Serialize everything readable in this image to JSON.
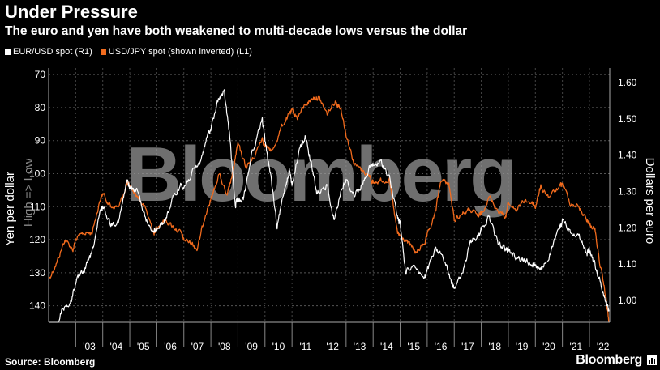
{
  "header": {
    "title": "Under Pressure",
    "subtitle": "The euro and yen have both weakened to multi-decade lows versus the dollar"
  },
  "footer": {
    "source": "Source: Bloomberg",
    "brand": "Bloomberg"
  },
  "watermark": "Bloomberg",
  "chart_data": {
    "type": "line",
    "title": "Under Pressure",
    "subtitle": "The euro and yen have both weakened to multi-decade lows versus the dollar",
    "legend_position": "top-left",
    "grid": true,
    "left_axis": {
      "label": "Yen per dollar",
      "annotation": "High => Low",
      "range": [
        145,
        68
      ],
      "inverted": true,
      "ticks": [
        70,
        80,
        90,
        100,
        110,
        120,
        130,
        140
      ]
    },
    "right_axis": {
      "label": "Dollars per euro",
      "range": [
        0.94,
        1.64
      ],
      "ticks": [
        "1.00",
        "1.10",
        "1.20",
        "1.30",
        "1.40",
        "1.50",
        "1.60"
      ]
    },
    "x_axis": {
      "range": [
        2002.0,
        2022.75
      ],
      "tick_labels": [
        "'03",
        "'04",
        "'05",
        "'06",
        "'07",
        "'08",
        "'09",
        "'10",
        "'11",
        "'12",
        "'13",
        "'14",
        "'15",
        "'16",
        "'17",
        "'18",
        "'19",
        "'20",
        "'21",
        "'22"
      ]
    },
    "series": [
      {
        "name": "EUR/USD spot (R1)",
        "axis": "right",
        "color": "#ffffff",
        "x": [
          2002.0,
          2002.2,
          2002.5,
          2002.8,
          2003.0,
          2003.3,
          2003.6,
          2003.9,
          2004.0,
          2004.3,
          2004.6,
          2004.9,
          2005.0,
          2005.3,
          2005.6,
          2005.9,
          2006.0,
          2006.3,
          2006.6,
          2006.9,
          2007.0,
          2007.3,
          2007.6,
          2007.9,
          2008.0,
          2008.3,
          2008.5,
          2008.7,
          2008.9,
          2009.0,
          2009.2,
          2009.5,
          2009.9,
          2010.0,
          2010.2,
          2010.45,
          2010.7,
          2010.9,
          2011.0,
          2011.3,
          2011.5,
          2011.7,
          2011.9,
          2012.0,
          2012.3,
          2012.55,
          2012.8,
          2013.0,
          2013.3,
          2013.6,
          2013.9,
          2014.0,
          2014.3,
          2014.6,
          2014.9,
          2015.0,
          2015.2,
          2015.5,
          2015.9,
          2016.0,
          2016.3,
          2016.6,
          2016.9,
          2017.0,
          2017.3,
          2017.6,
          2017.9,
          2018.0,
          2018.3,
          2018.6,
          2018.9,
          2019.0,
          2019.3,
          2019.6,
          2019.9,
          2020.0,
          2020.2,
          2020.5,
          2020.9,
          2021.0,
          2021.3,
          2021.6,
          2021.9,
          2022.0,
          2022.2,
          2022.4,
          2022.6,
          2022.72
        ],
        "values": [
          0.9,
          0.88,
          0.98,
          0.99,
          1.05,
          1.08,
          1.13,
          1.24,
          1.26,
          1.21,
          1.22,
          1.33,
          1.31,
          1.3,
          1.22,
          1.19,
          1.2,
          1.22,
          1.28,
          1.32,
          1.31,
          1.35,
          1.38,
          1.46,
          1.47,
          1.56,
          1.57,
          1.45,
          1.26,
          1.28,
          1.28,
          1.4,
          1.5,
          1.44,
          1.35,
          1.2,
          1.3,
          1.36,
          1.32,
          1.42,
          1.45,
          1.38,
          1.3,
          1.29,
          1.32,
          1.22,
          1.3,
          1.33,
          1.29,
          1.32,
          1.37,
          1.37,
          1.38,
          1.34,
          1.23,
          1.21,
          1.08,
          1.1,
          1.06,
          1.08,
          1.14,
          1.12,
          1.05,
          1.04,
          1.07,
          1.16,
          1.18,
          1.2,
          1.23,
          1.16,
          1.14,
          1.14,
          1.12,
          1.11,
          1.1,
          1.1,
          1.08,
          1.12,
          1.2,
          1.22,
          1.19,
          1.18,
          1.13,
          1.14,
          1.1,
          1.05,
          1.0,
          0.97
        ]
      },
      {
        "name": "USD/JPY spot (shown inverted) (L1)",
        "axis": "left",
        "color": "#f26b1d",
        "x": [
          2002.0,
          2002.3,
          2002.6,
          2002.9,
          2003.0,
          2003.3,
          2003.6,
          2003.9,
          2004.0,
          2004.3,
          2004.6,
          2004.9,
          2005.0,
          2005.3,
          2005.6,
          2005.9,
          2006.0,
          2006.3,
          2006.6,
          2006.9,
          2007.0,
          2007.3,
          2007.5,
          2007.8,
          2008.0,
          2008.3,
          2008.6,
          2008.8,
          2009.0,
          2009.3,
          2009.6,
          2009.9,
          2010.0,
          2010.3,
          2010.6,
          2010.9,
          2011.0,
          2011.2,
          2011.5,
          2011.8,
          2012.0,
          2012.3,
          2012.6,
          2012.8,
          2013.0,
          2013.3,
          2013.6,
          2013.9,
          2014.0,
          2014.3,
          2014.6,
          2014.9,
          2015.0,
          2015.3,
          2015.6,
          2015.9,
          2016.0,
          2016.3,
          2016.5,
          2016.8,
          2017.0,
          2017.3,
          2017.6,
          2017.9,
          2018.0,
          2018.3,
          2018.6,
          2018.9,
          2019.0,
          2019.3,
          2019.6,
          2019.9,
          2020.0,
          2020.2,
          2020.5,
          2020.9,
          2021.0,
          2021.3,
          2021.6,
          2021.9,
          2022.0,
          2022.2,
          2022.4,
          2022.6,
          2022.72
        ],
        "values": [
          132,
          127,
          120,
          123,
          120,
          118,
          118,
          108,
          106,
          110,
          110,
          103,
          104,
          107,
          111,
          118,
          116,
          114,
          116,
          118,
          120,
          121,
          123,
          112,
          108,
          100,
          107,
          100,
          91,
          98,
          95,
          89,
          92,
          93,
          86,
          82,
          81,
          83,
          79,
          77,
          77,
          82,
          78,
          80,
          88,
          97,
          99,
          101,
          103,
          102,
          102,
          118,
          119,
          121,
          124,
          121,
          119,
          112,
          102,
          103,
          114,
          112,
          111,
          113,
          112,
          107,
          111,
          113,
          109,
          111,
          108,
          109,
          110,
          104,
          107,
          104,
          103,
          109,
          110,
          114,
          115,
          117,
          128,
          137,
          145
        ]
      }
    ]
  }
}
